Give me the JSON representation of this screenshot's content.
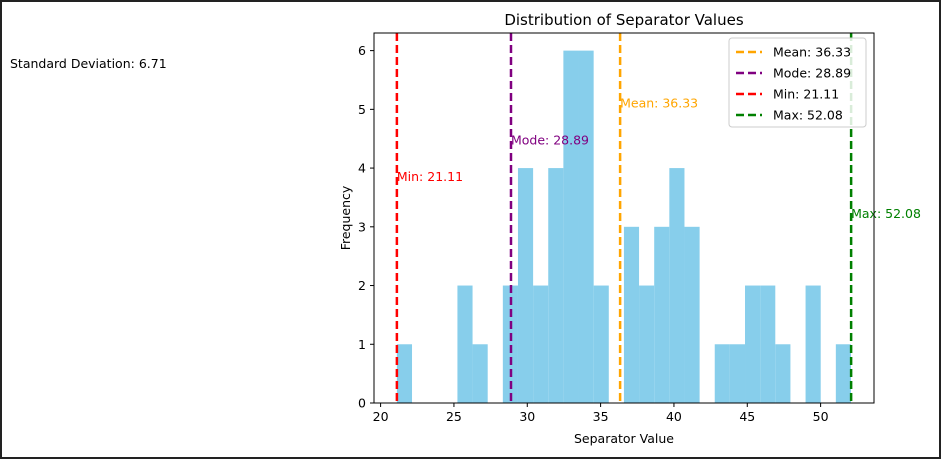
{
  "side_panel": {
    "std_label": "Standard Deviation:",
    "std_value": "6.71"
  },
  "chart_data": {
    "type": "bar",
    "title": "Distribution of Separator Values",
    "xlabel": "Separator Value",
    "ylabel": "Frequency",
    "bar_color": "#87ceeb",
    "xlim": [
      19.55,
      53.64
    ],
    "ylim": [
      0,
      6.3
    ],
    "xticks": [
      20,
      25,
      30,
      35,
      40,
      45,
      50
    ],
    "yticks": [
      0,
      1,
      2,
      3,
      4,
      5,
      6
    ],
    "bin_width": 1.032,
    "bins": [
      {
        "x0": 21.11,
        "count": 1
      },
      {
        "x0": 22.142,
        "count": 0
      },
      {
        "x0": 23.174,
        "count": 0
      },
      {
        "x0": 24.206,
        "count": 0
      },
      {
        "x0": 25.238,
        "count": 2
      },
      {
        "x0": 26.27,
        "count": 1
      },
      {
        "x0": 27.302,
        "count": 0
      },
      {
        "x0": 28.334,
        "count": 2
      },
      {
        "x0": 29.366,
        "count": 4
      },
      {
        "x0": 30.398,
        "count": 2
      },
      {
        "x0": 31.43,
        "count": 4
      },
      {
        "x0": 32.462,
        "count": 6
      },
      {
        "x0": 33.494,
        "count": 6
      },
      {
        "x0": 34.526,
        "count": 2
      },
      {
        "x0": 35.558,
        "count": 0
      },
      {
        "x0": 36.59,
        "count": 3
      },
      {
        "x0": 37.622,
        "count": 2
      },
      {
        "x0": 38.654,
        "count": 3
      },
      {
        "x0": 39.686,
        "count": 4
      },
      {
        "x0": 40.718,
        "count": 3
      },
      {
        "x0": 41.75,
        "count": 0
      },
      {
        "x0": 42.782,
        "count": 1
      },
      {
        "x0": 43.814,
        "count": 1
      },
      {
        "x0": 44.846,
        "count": 2
      },
      {
        "x0": 45.878,
        "count": 2
      },
      {
        "x0": 46.91,
        "count": 1
      },
      {
        "x0": 47.942,
        "count": 0
      },
      {
        "x0": 48.974,
        "count": 2
      },
      {
        "x0": 50.006,
        "count": 0
      },
      {
        "x0": 51.038,
        "count": 1
      }
    ],
    "reference_lines": [
      {
        "key": "mean",
        "label": "Mean: 36.33",
        "value": 36.33,
        "color": "#ffa500",
        "text_y": 5.03
      },
      {
        "key": "mode",
        "label": "Mode: 28.89",
        "value": 28.89,
        "color": "#800080",
        "text_y": 4.4
      },
      {
        "key": "min",
        "label": "Min: 21.11",
        "value": 21.11,
        "color": "#ff0000",
        "text_y": 3.78
      },
      {
        "key": "max",
        "label": "Max: 52.08",
        "value": 52.08,
        "color": "#008000",
        "text_y": 3.15
      }
    ],
    "legend": {
      "placement": "top-right",
      "entries": [
        "Mean: 36.33",
        "Mode: 28.89",
        "Min: 21.11",
        "Max: 52.08"
      ]
    }
  }
}
